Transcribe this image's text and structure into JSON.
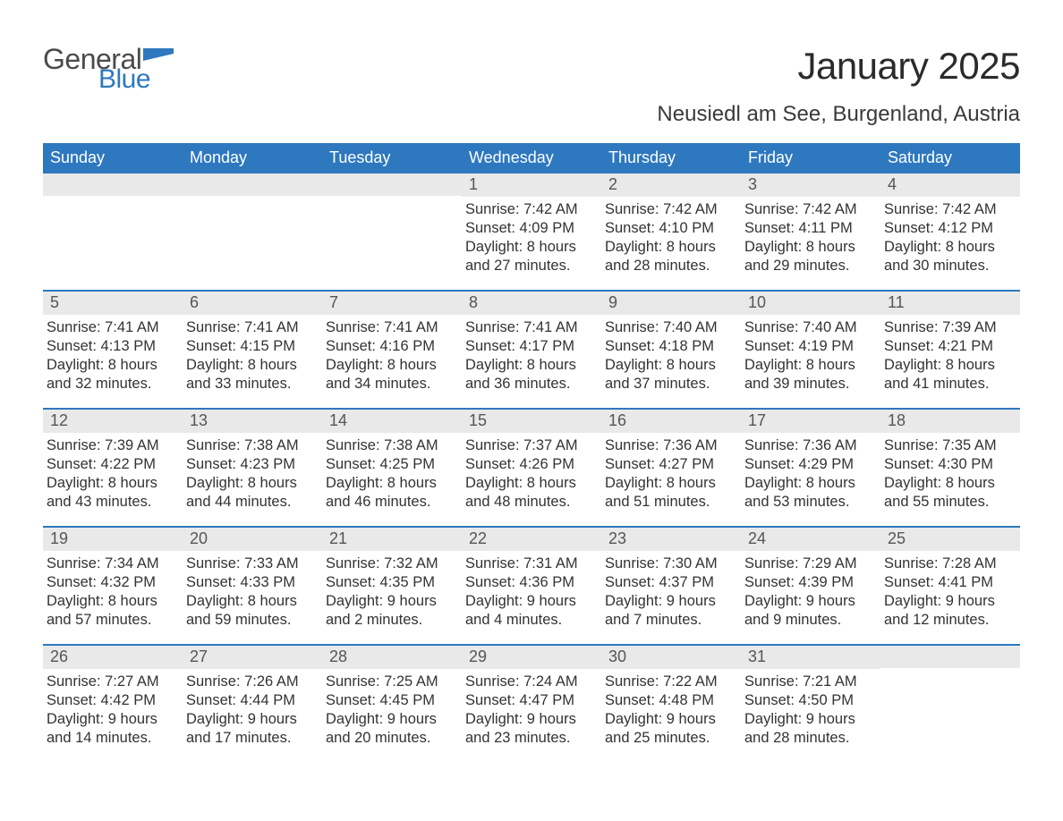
{
  "logo": {
    "text_general": "General",
    "text_blue": "Blue",
    "flag_color": "#2e78bf",
    "general_color": "#4a4a4a"
  },
  "title": {
    "month": "January 2025",
    "location": "Neusiedl am See, Burgenland, Austria",
    "month_fontsize": 42,
    "location_fontsize": 24
  },
  "colors": {
    "header_bg": "#2e78bf",
    "header_text": "#ffffff",
    "daynum_bg": "#e9e9e9",
    "daynum_text": "#555555",
    "body_text": "#333333",
    "week_border": "#2e78bf",
    "page_bg": "#ffffff"
  },
  "typography": {
    "weekday_fontsize": 18,
    "daynum_fontsize": 18,
    "body_fontsize": 16.5,
    "font_family": "Arial"
  },
  "weekdays": [
    "Sunday",
    "Monday",
    "Tuesday",
    "Wednesday",
    "Thursday",
    "Friday",
    "Saturday"
  ],
  "weeks": [
    [
      {
        "empty": true
      },
      {
        "empty": true
      },
      {
        "empty": true
      },
      {
        "day": "1",
        "sunrise": "Sunrise: 7:42 AM",
        "sunset": "Sunset: 4:09 PM",
        "daylight1": "Daylight: 8 hours",
        "daylight2": "and 27 minutes."
      },
      {
        "day": "2",
        "sunrise": "Sunrise: 7:42 AM",
        "sunset": "Sunset: 4:10 PM",
        "daylight1": "Daylight: 8 hours",
        "daylight2": "and 28 minutes."
      },
      {
        "day": "3",
        "sunrise": "Sunrise: 7:42 AM",
        "sunset": "Sunset: 4:11 PM",
        "daylight1": "Daylight: 8 hours",
        "daylight2": "and 29 minutes."
      },
      {
        "day": "4",
        "sunrise": "Sunrise: 7:42 AM",
        "sunset": "Sunset: 4:12 PM",
        "daylight1": "Daylight: 8 hours",
        "daylight2": "and 30 minutes."
      }
    ],
    [
      {
        "day": "5",
        "sunrise": "Sunrise: 7:41 AM",
        "sunset": "Sunset: 4:13 PM",
        "daylight1": "Daylight: 8 hours",
        "daylight2": "and 32 minutes."
      },
      {
        "day": "6",
        "sunrise": "Sunrise: 7:41 AM",
        "sunset": "Sunset: 4:15 PM",
        "daylight1": "Daylight: 8 hours",
        "daylight2": "and 33 minutes."
      },
      {
        "day": "7",
        "sunrise": "Sunrise: 7:41 AM",
        "sunset": "Sunset: 4:16 PM",
        "daylight1": "Daylight: 8 hours",
        "daylight2": "and 34 minutes."
      },
      {
        "day": "8",
        "sunrise": "Sunrise: 7:41 AM",
        "sunset": "Sunset: 4:17 PM",
        "daylight1": "Daylight: 8 hours",
        "daylight2": "and 36 minutes."
      },
      {
        "day": "9",
        "sunrise": "Sunrise: 7:40 AM",
        "sunset": "Sunset: 4:18 PM",
        "daylight1": "Daylight: 8 hours",
        "daylight2": "and 37 minutes."
      },
      {
        "day": "10",
        "sunrise": "Sunrise: 7:40 AM",
        "sunset": "Sunset: 4:19 PM",
        "daylight1": "Daylight: 8 hours",
        "daylight2": "and 39 minutes."
      },
      {
        "day": "11",
        "sunrise": "Sunrise: 7:39 AM",
        "sunset": "Sunset: 4:21 PM",
        "daylight1": "Daylight: 8 hours",
        "daylight2": "and 41 minutes."
      }
    ],
    [
      {
        "day": "12",
        "sunrise": "Sunrise: 7:39 AM",
        "sunset": "Sunset: 4:22 PM",
        "daylight1": "Daylight: 8 hours",
        "daylight2": "and 43 minutes."
      },
      {
        "day": "13",
        "sunrise": "Sunrise: 7:38 AM",
        "sunset": "Sunset: 4:23 PM",
        "daylight1": "Daylight: 8 hours",
        "daylight2": "and 44 minutes."
      },
      {
        "day": "14",
        "sunrise": "Sunrise: 7:38 AM",
        "sunset": "Sunset: 4:25 PM",
        "daylight1": "Daylight: 8 hours",
        "daylight2": "and 46 minutes."
      },
      {
        "day": "15",
        "sunrise": "Sunrise: 7:37 AM",
        "sunset": "Sunset: 4:26 PM",
        "daylight1": "Daylight: 8 hours",
        "daylight2": "and 48 minutes."
      },
      {
        "day": "16",
        "sunrise": "Sunrise: 7:36 AM",
        "sunset": "Sunset: 4:27 PM",
        "daylight1": "Daylight: 8 hours",
        "daylight2": "and 51 minutes."
      },
      {
        "day": "17",
        "sunrise": "Sunrise: 7:36 AM",
        "sunset": "Sunset: 4:29 PM",
        "daylight1": "Daylight: 8 hours",
        "daylight2": "and 53 minutes."
      },
      {
        "day": "18",
        "sunrise": "Sunrise: 7:35 AM",
        "sunset": "Sunset: 4:30 PM",
        "daylight1": "Daylight: 8 hours",
        "daylight2": "and 55 minutes."
      }
    ],
    [
      {
        "day": "19",
        "sunrise": "Sunrise: 7:34 AM",
        "sunset": "Sunset: 4:32 PM",
        "daylight1": "Daylight: 8 hours",
        "daylight2": "and 57 minutes."
      },
      {
        "day": "20",
        "sunrise": "Sunrise: 7:33 AM",
        "sunset": "Sunset: 4:33 PM",
        "daylight1": "Daylight: 8 hours",
        "daylight2": "and 59 minutes."
      },
      {
        "day": "21",
        "sunrise": "Sunrise: 7:32 AM",
        "sunset": "Sunset: 4:35 PM",
        "daylight1": "Daylight: 9 hours",
        "daylight2": "and 2 minutes."
      },
      {
        "day": "22",
        "sunrise": "Sunrise: 7:31 AM",
        "sunset": "Sunset: 4:36 PM",
        "daylight1": "Daylight: 9 hours",
        "daylight2": "and 4 minutes."
      },
      {
        "day": "23",
        "sunrise": "Sunrise: 7:30 AM",
        "sunset": "Sunset: 4:37 PM",
        "daylight1": "Daylight: 9 hours",
        "daylight2": "and 7 minutes."
      },
      {
        "day": "24",
        "sunrise": "Sunrise: 7:29 AM",
        "sunset": "Sunset: 4:39 PM",
        "daylight1": "Daylight: 9 hours",
        "daylight2": "and 9 minutes."
      },
      {
        "day": "25",
        "sunrise": "Sunrise: 7:28 AM",
        "sunset": "Sunset: 4:41 PM",
        "daylight1": "Daylight: 9 hours",
        "daylight2": "and 12 minutes."
      }
    ],
    [
      {
        "day": "26",
        "sunrise": "Sunrise: 7:27 AM",
        "sunset": "Sunset: 4:42 PM",
        "daylight1": "Daylight: 9 hours",
        "daylight2": "and 14 minutes."
      },
      {
        "day": "27",
        "sunrise": "Sunrise: 7:26 AM",
        "sunset": "Sunset: 4:44 PM",
        "daylight1": "Daylight: 9 hours",
        "daylight2": "and 17 minutes."
      },
      {
        "day": "28",
        "sunrise": "Sunrise: 7:25 AM",
        "sunset": "Sunset: 4:45 PM",
        "daylight1": "Daylight: 9 hours",
        "daylight2": "and 20 minutes."
      },
      {
        "day": "29",
        "sunrise": "Sunrise: 7:24 AM",
        "sunset": "Sunset: 4:47 PM",
        "daylight1": "Daylight: 9 hours",
        "daylight2": "and 23 minutes."
      },
      {
        "day": "30",
        "sunrise": "Sunrise: 7:22 AM",
        "sunset": "Sunset: 4:48 PM",
        "daylight1": "Daylight: 9 hours",
        "daylight2": "and 25 minutes."
      },
      {
        "day": "31",
        "sunrise": "Sunrise: 7:21 AM",
        "sunset": "Sunset: 4:50 PM",
        "daylight1": "Daylight: 9 hours",
        "daylight2": "and 28 minutes."
      },
      {
        "empty": true
      }
    ]
  ]
}
